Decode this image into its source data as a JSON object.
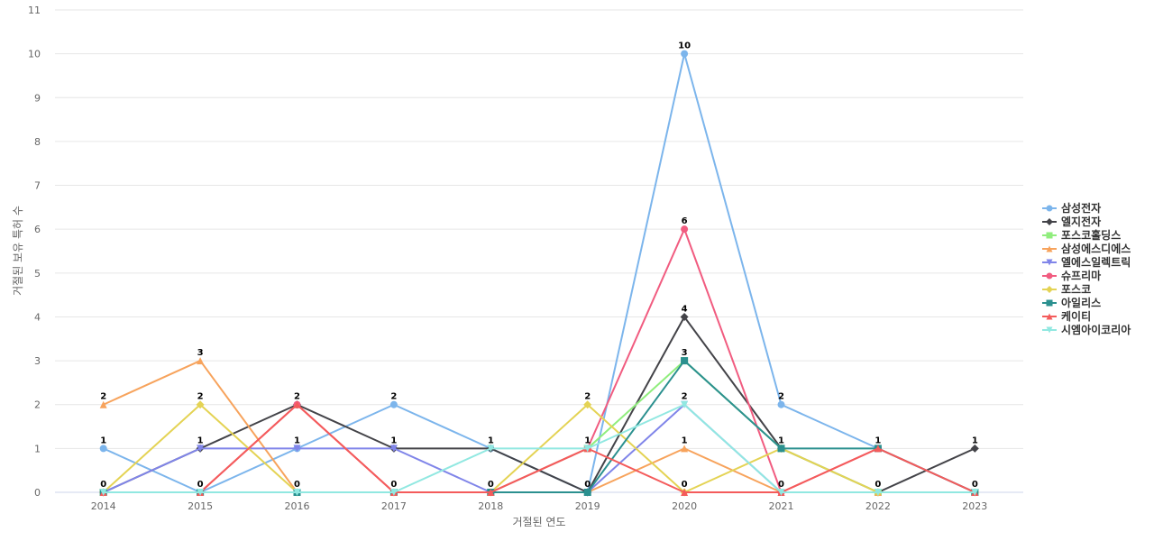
{
  "chart_data": {
    "type": "line",
    "title": "",
    "xlabel": "거절된 연도",
    "ylabel": "거절된 보유 특허 수",
    "categories": [
      "2014",
      "2015",
      "2016",
      "2017",
      "2018",
      "2019",
      "2020",
      "2021",
      "2022",
      "2023"
    ],
    "ylim": [
      0,
      11
    ],
    "yticks": [
      0,
      1,
      2,
      3,
      4,
      5,
      6,
      7,
      8,
      9,
      10,
      11
    ],
    "grid": true,
    "legend_position": "right",
    "series": [
      {
        "name": "삼성전자",
        "color": "#7cb5ec",
        "marker": "circle",
        "values": [
          1,
          0,
          1,
          2,
          1,
          0,
          10,
          2,
          1,
          0
        ]
      },
      {
        "name": "엘지전자",
        "color": "#434348",
        "marker": "diamond",
        "values": [
          0,
          1,
          2,
          1,
          1,
          0,
          4,
          1,
          0,
          1
        ]
      },
      {
        "name": "포스코홀딩스",
        "color": "#90ed7d",
        "marker": "square",
        "values": [
          0,
          0,
          0,
          0,
          0,
          1,
          3,
          1,
          0,
          0
        ]
      },
      {
        "name": "삼성에스디에스",
        "color": "#f7a35c",
        "marker": "triangle",
        "values": [
          2,
          3,
          0,
          0,
          0,
          0,
          1,
          0,
          0,
          0
        ]
      },
      {
        "name": "엘에스일렉트릭",
        "color": "#8085e9",
        "marker": "triangle-down",
        "values": [
          0,
          1,
          1,
          1,
          0,
          0,
          2,
          0,
          0,
          0
        ]
      },
      {
        "name": "슈프리마",
        "color": "#f15c80",
        "marker": "circle",
        "values": [
          0,
          0,
          2,
          0,
          0,
          1,
          6,
          0,
          1,
          0
        ]
      },
      {
        "name": "포스코",
        "color": "#e4d354",
        "marker": "diamond",
        "values": [
          0,
          2,
          0,
          0,
          0,
          2,
          0,
          1,
          0,
          0
        ]
      },
      {
        "name": "아일리스",
        "color": "#2b908f",
        "marker": "square",
        "values": [
          0,
          0,
          0,
          0,
          0,
          0,
          3,
          1,
          1,
          0
        ]
      },
      {
        "name": "케이티",
        "color": "#f45b5b",
        "marker": "triangle",
        "values": [
          0,
          0,
          2,
          0,
          0,
          1,
          0,
          0,
          1,
          0
        ]
      },
      {
        "name": "시엠아이코리아",
        "color": "#91e8e1",
        "marker": "triangle-down",
        "values": [
          0,
          0,
          0,
          0,
          1,
          1,
          2,
          0,
          0,
          0
        ]
      }
    ],
    "data_labels": [
      {
        "category": "2014",
        "value": 2,
        "text": "2"
      },
      {
        "category": "2014",
        "value": 1,
        "text": "1"
      },
      {
        "category": "2014",
        "value": 0,
        "text": "0"
      },
      {
        "category": "2015",
        "value": 3,
        "text": "3"
      },
      {
        "category": "2015",
        "value": 2,
        "text": "2"
      },
      {
        "category": "2015",
        "value": 1,
        "text": "1"
      },
      {
        "category": "2015",
        "value": 0,
        "text": "0"
      },
      {
        "category": "2016",
        "value": 2,
        "text": "2"
      },
      {
        "category": "2016",
        "value": 1,
        "text": "1"
      },
      {
        "category": "2016",
        "value": 0,
        "text": "0"
      },
      {
        "category": "2017",
        "value": 2,
        "text": "2"
      },
      {
        "category": "2017",
        "value": 1,
        "text": "1"
      },
      {
        "category": "2017",
        "value": 0,
        "text": "0"
      },
      {
        "category": "2018",
        "value": 1,
        "text": "1"
      },
      {
        "category": "2018",
        "value": 0,
        "text": "0"
      },
      {
        "category": "2019",
        "value": 2,
        "text": "2"
      },
      {
        "category": "2019",
        "value": 1,
        "text": "1"
      },
      {
        "category": "2019",
        "value": 0,
        "text": "0"
      },
      {
        "category": "2020",
        "value": 10,
        "text": "10"
      },
      {
        "category": "2020",
        "value": 6,
        "text": "6"
      },
      {
        "category": "2020",
        "value": 4,
        "text": "4"
      },
      {
        "category": "2020",
        "value": 3,
        "text": "3"
      },
      {
        "category": "2020",
        "value": 2,
        "text": "2"
      },
      {
        "category": "2020",
        "value": 1,
        "text": "1"
      },
      {
        "category": "2020",
        "value": 0,
        "text": "0"
      },
      {
        "category": "2021",
        "value": 2,
        "text": "2"
      },
      {
        "category": "2021",
        "value": 1,
        "text": "1"
      },
      {
        "category": "2021",
        "value": 0,
        "text": "0"
      },
      {
        "category": "2022",
        "value": 1,
        "text": "1"
      },
      {
        "category": "2022",
        "value": 0,
        "text": "0"
      },
      {
        "category": "2023",
        "value": 1,
        "text": "1"
      },
      {
        "category": "2023",
        "value": 0,
        "text": "0"
      }
    ]
  }
}
